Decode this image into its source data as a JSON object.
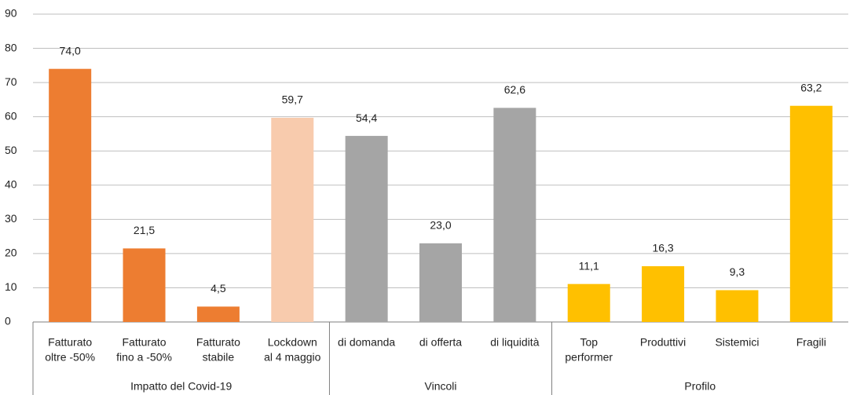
{
  "chart_data": {
    "type": "bar",
    "categories": [
      [
        "Fatturato",
        "oltre -50%"
      ],
      [
        "Fatturato",
        "fino a -50%"
      ],
      [
        "Fatturato",
        "stabile"
      ],
      [
        "Lockdown",
        "al 4 maggio"
      ],
      [
        "di domanda"
      ],
      [
        "di offerta"
      ],
      [
        "di liquidità"
      ],
      [
        "Top",
        "performer"
      ],
      [
        "Produttivi"
      ],
      [
        "Sistemici"
      ],
      [
        "Fragili"
      ]
    ],
    "values": [
      74.0,
      21.5,
      4.5,
      59.7,
      54.4,
      23.0,
      62.6,
      11.1,
      16.3,
      9.3,
      63.2
    ],
    "value_labels": [
      "74,0",
      "21,5",
      "4,5",
      "59,7",
      "54,4",
      "23,0",
      "62,6",
      "11,1",
      "16,3",
      "9,3",
      "63,2"
    ],
    "colors": [
      "#ed7d31",
      "#ed7d31",
      "#ed7d31",
      "#f8cbad",
      "#a5a5a5",
      "#a5a5a5",
      "#a5a5a5",
      "#ffc000",
      "#ffc000",
      "#ffc000",
      "#ffc000"
    ],
    "groups": [
      {
        "label": "Impatto del Covid-19",
        "count": 4
      },
      {
        "label": "Vincoli",
        "count": 3
      },
      {
        "label": "Profilo",
        "count": 4
      }
    ],
    "ylim": [
      0,
      90
    ],
    "yticks": [
      0,
      10,
      20,
      30,
      40,
      50,
      60,
      70,
      80,
      90
    ],
    "grid": true
  }
}
